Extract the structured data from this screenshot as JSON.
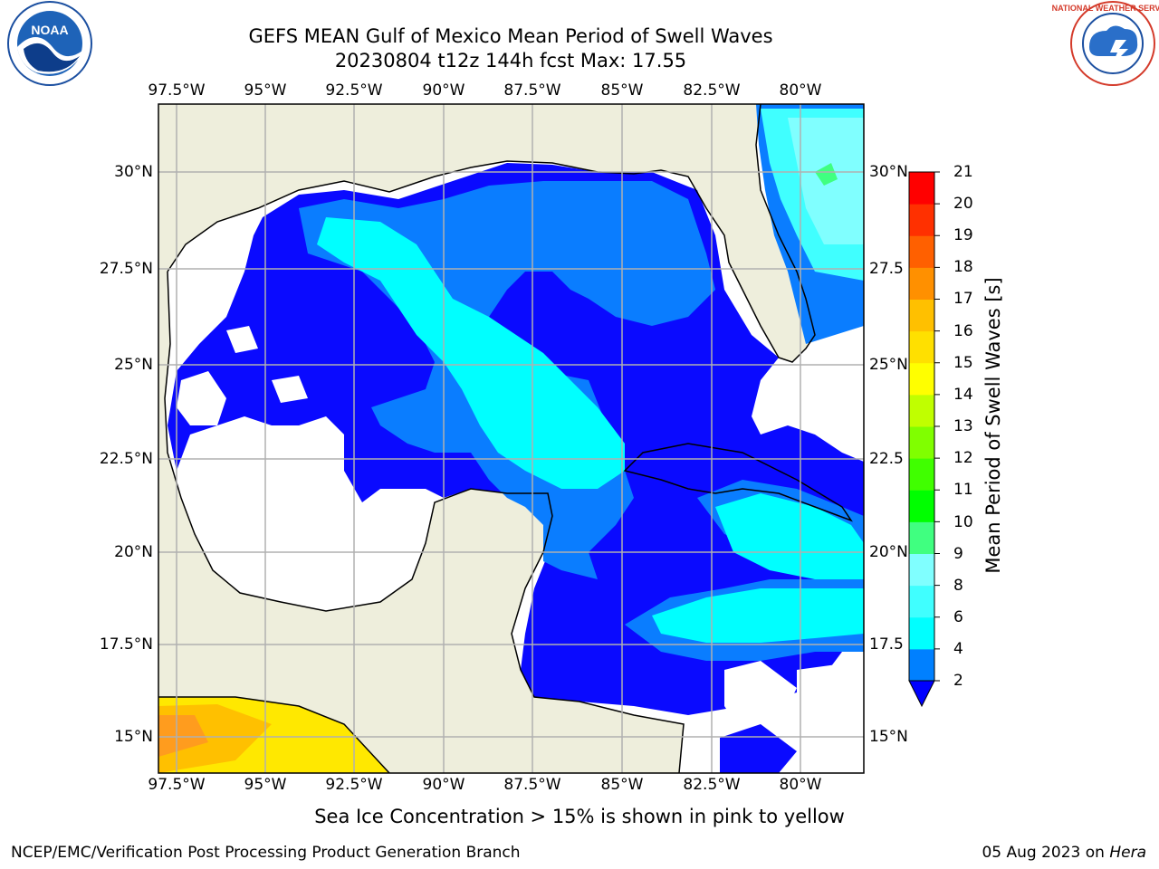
{
  "header": {
    "title": "GEFS MEAN Gulf of Mexico Mean Period of Swell Waves",
    "subtitle": "20230804 t12z 144h fcst   Max: 17.55"
  },
  "logos": {
    "left": "NOAA",
    "left_ring_text": "NATIONAL OCEANIC AND ATMOSPHERIC ADMINISTRATION · U.S. DEPARTMENT OF COMMERCE",
    "right_ring_text": "NATIONAL WEATHER SERVICE"
  },
  "map": {
    "lon_labels": [
      "97.5°W",
      "95°W",
      "92.5°W",
      "90°W",
      "87.5°W",
      "85°W",
      "82.5°W",
      "80°W"
    ],
    "lat_labels_left": [
      "30°N",
      "27.5°N",
      "25°N",
      "22.5°N",
      "20°N",
      "17.5°N",
      "15°N"
    ],
    "lat_labels_right": [
      "30°N",
      "27.5",
      "25°N",
      "22.5",
      "20°N",
      "17.5",
      "15°N"
    ],
    "land_color": "#eeeedc",
    "ocean_nodata_color": "#ffffff"
  },
  "colorbar": {
    "label": "Mean Period of Swell Waves [s]",
    "ticks": [
      "21",
      "20",
      "19",
      "18",
      "17",
      "16",
      "15",
      "14",
      "13",
      "12",
      "11",
      "10",
      "9",
      "8",
      "6",
      "4",
      "2"
    ],
    "levels": [
      2,
      4,
      6,
      8,
      9,
      10,
      11,
      12,
      13,
      14,
      15,
      16,
      17,
      18,
      19,
      20,
      21
    ],
    "colors": [
      "#0000ff",
      "#0080ff",
      "#00ffff",
      "#40ffff",
      "#80ffff",
      "#40ff80",
      "#00ff00",
      "#40ff00",
      "#80ff00",
      "#c0ff00",
      "#ffff00",
      "#ffe000",
      "#ffc000",
      "#ff9000",
      "#ff6000",
      "#ff3000",
      "#ff0000"
    ]
  },
  "footnote": "Sea Ice Concentration > 15% is shown in pink to yellow",
  "footer": {
    "left": "NCEP/EMC/Verification Post Processing Product Generation Branch",
    "right_prefix": "05 Aug 2023 on ",
    "right_host": "Hera"
  }
}
